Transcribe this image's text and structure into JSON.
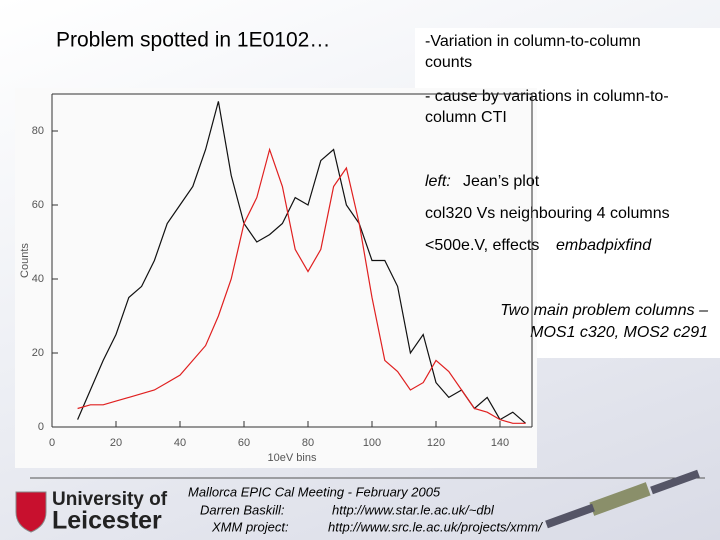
{
  "slide": {
    "title": "Problem spotted in 1E0102…",
    "bullets": {
      "variation": [
        "-Variation in column-to-column",
        "counts"
      ],
      "cause": [
        "- cause by variations in column-to-",
        "column CTI"
      ],
      "left_label": "left:",
      "left_text": "Jean’s plot",
      "col320": "col320 Vs neighbouring 4 columns",
      "effects_text": "<500e.V, effects",
      "effects_tool": "embadpixfind",
      "problem": [
        "Two main problem columns –",
        "MOS1 c320, MOS2 c291"
      ]
    },
    "footer": {
      "logo_top": "University of",
      "logo_bottom": "Leicester",
      "meeting": "Mallorca EPIC Cal Meeting - February 2005",
      "person": "Darren Baskill:",
      "person_url": "http://www.star.le.ac.uk/~dbl",
      "project": "XMM project:",
      "project_url": "http://www.src.le.ac.uk/projects/xmm/"
    }
  },
  "chart_data": {
    "type": "line",
    "x_label": "10eV bins",
    "y_label": "Counts",
    "x": [
      8,
      12,
      16,
      20,
      24,
      28,
      32,
      36,
      40,
      44,
      48,
      52,
      56,
      60,
      64,
      68,
      72,
      76,
      80,
      84,
      88,
      92,
      96,
      100,
      104,
      108,
      112,
      116,
      120,
      124,
      128,
      132,
      136,
      140,
      144,
      148
    ],
    "series": [
      {
        "color": "#111111",
        "values": [
          2,
          10,
          18,
          25,
          35,
          38,
          45,
          55,
          60,
          65,
          75,
          88,
          68,
          55,
          50,
          52,
          55,
          62,
          60,
          72,
          75,
          60,
          55,
          45,
          45,
          38,
          20,
          25,
          12,
          8,
          10,
          5,
          8,
          2,
          4,
          1
        ]
      },
      {
        "color": "#e02020",
        "values": [
          5,
          6,
          6,
          7,
          8,
          9,
          10,
          12,
          14,
          18,
          22,
          30,
          40,
          55,
          62,
          75,
          65,
          48,
          42,
          48,
          65,
          70,
          55,
          35,
          18,
          15,
          10,
          12,
          18,
          15,
          10,
          5,
          4,
          2,
          1,
          1
        ]
      }
    ],
    "xlim": [
      0,
      150
    ],
    "ylim": [
      0,
      90
    ],
    "xticks": [
      0,
      20,
      40,
      60,
      80,
      100,
      120,
      140
    ],
    "yticks": [
      0,
      20,
      40,
      60,
      80
    ]
  }
}
